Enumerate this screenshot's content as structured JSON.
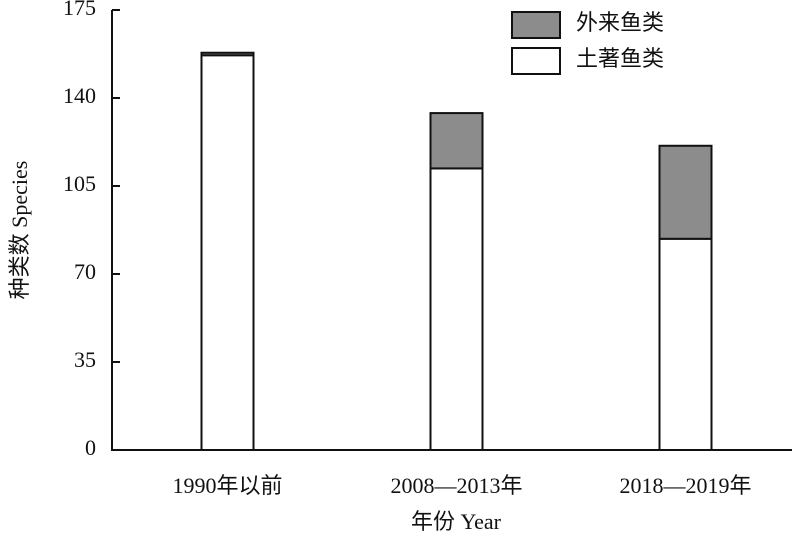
{
  "chart_data": {
    "type": "stacked_bar",
    "x_label": "年份 Year",
    "y_label": "种类数 Species",
    "categories": [
      "1990年以前",
      "2008—2013年",
      "2018—2019年"
    ],
    "series": [
      {
        "name": "土著鱼类",
        "color": "#ffffff",
        "values": [
          157,
          112,
          84
        ]
      },
      {
        "name": "外来鱼类",
        "color": "#8c8c8c",
        "values": [
          1,
          22,
          37
        ]
      }
    ],
    "ylim": [
      0,
      175
    ],
    "yticks": [
      0,
      35,
      70,
      105,
      140,
      175
    ],
    "grid": false,
    "legend": "top-right"
  }
}
